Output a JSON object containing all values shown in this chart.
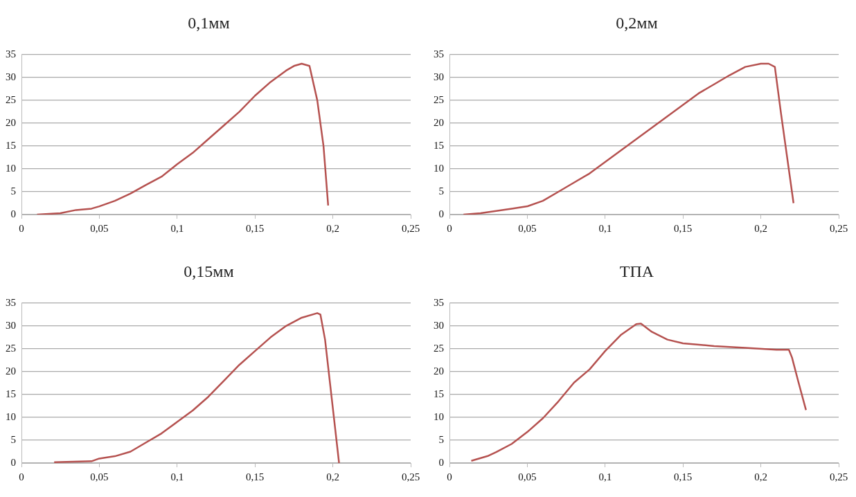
{
  "chart_data": [
    {
      "type": "line",
      "title": "0,1мм",
      "color": "#b5514f",
      "marker": "none",
      "grid": "y",
      "legend": false,
      "xlim": [
        0,
        0.25
      ],
      "xticks": [
        {
          "value": 0,
          "label": "0"
        },
        {
          "value": 0.05,
          "label": "0,05"
        },
        {
          "value": 0.1,
          "label": "0,1"
        },
        {
          "value": 0.15,
          "label": "0,15"
        },
        {
          "value": 0.2,
          "label": "0,2"
        },
        {
          "value": 0.25,
          "label": "0,25"
        }
      ],
      "ylim": [
        0,
        35
      ],
      "yticks": [
        0,
        5,
        10,
        15,
        20,
        25,
        30,
        35
      ],
      "x": [
        0.01,
        0.025,
        0.035,
        0.045,
        0.05,
        0.06,
        0.07,
        0.08,
        0.09,
        0.1,
        0.11,
        0.12,
        0.13,
        0.14,
        0.15,
        0.16,
        0.17,
        0.175,
        0.18,
        0.185,
        0.19,
        0.194,
        0.197
      ],
      "values": [
        0,
        0.3,
        1,
        1.3,
        1.8,
        3,
        4.6,
        6.5,
        8.3,
        11,
        13.5,
        16.5,
        19.5,
        22.5,
        26,
        29,
        31.5,
        32.5,
        33,
        32.5,
        25,
        15,
        2
      ]
    },
    {
      "type": "line",
      "title": "0,2мм",
      "color": "#b5514f",
      "marker": "none",
      "grid": "y",
      "legend": false,
      "xlim": [
        0,
        0.25
      ],
      "xticks": [
        {
          "value": 0,
          "label": "0"
        },
        {
          "value": 0.05,
          "label": "0,05"
        },
        {
          "value": 0.1,
          "label": "0,1"
        },
        {
          "value": 0.15,
          "label": "0,15"
        },
        {
          "value": 0.2,
          "label": "0,2"
        },
        {
          "value": 0.25,
          "label": "0,25"
        }
      ],
      "ylim": [
        0,
        35
      ],
      "yticks": [
        0,
        5,
        10,
        15,
        20,
        25,
        30,
        35
      ],
      "x": [
        0.009,
        0.02,
        0.03,
        0.04,
        0.05,
        0.06,
        0.07,
        0.08,
        0.09,
        0.1,
        0.11,
        0.12,
        0.13,
        0.14,
        0.15,
        0.16,
        0.17,
        0.18,
        0.19,
        0.2,
        0.205,
        0.209,
        0.213,
        0.221
      ],
      "values": [
        0,
        0.3,
        0.8,
        1.3,
        1.8,
        3,
        5,
        7,
        9,
        11.5,
        14,
        16.5,
        19,
        21.5,
        24,
        26.5,
        28.5,
        30.5,
        32.3,
        33,
        33,
        32.3,
        22,
        2.5
      ]
    },
    {
      "type": "line",
      "title": "0,15мм",
      "color": "#b5514f",
      "marker": "none",
      "grid": "y",
      "legend": false,
      "xlim": [
        0,
        0.25
      ],
      "xticks": [
        {
          "value": 0,
          "label": "0"
        },
        {
          "value": 0.05,
          "label": "0,05"
        },
        {
          "value": 0.1,
          "label": "0,1"
        },
        {
          "value": 0.15,
          "label": "0,15"
        },
        {
          "value": 0.2,
          "label": "0,2"
        },
        {
          "value": 0.25,
          "label": "0,25"
        }
      ],
      "ylim": [
        0,
        35
      ],
      "yticks": [
        0,
        5,
        10,
        15,
        20,
        25,
        30,
        35
      ],
      "x": [
        0.021,
        0.045,
        0.05,
        0.06,
        0.07,
        0.08,
        0.09,
        0.1,
        0.11,
        0.12,
        0.13,
        0.14,
        0.15,
        0.16,
        0.17,
        0.18,
        0.19,
        0.192,
        0.195,
        0.2,
        0.204
      ],
      "values": [
        0.2,
        0.4,
        1,
        1.5,
        2.5,
        4.5,
        6.5,
        9,
        11.5,
        14.5,
        18,
        21.5,
        24.5,
        27.5,
        30,
        31.8,
        32.8,
        32.5,
        27,
        12,
        0
      ]
    },
    {
      "type": "line",
      "title": "ТПА",
      "color": "#b5514f",
      "marker": "none",
      "grid": "y",
      "legend": false,
      "xlim": [
        0,
        0.25
      ],
      "xticks": [
        {
          "value": 0,
          "label": "0"
        },
        {
          "value": 0.05,
          "label": "0,05"
        },
        {
          "value": 0.1,
          "label": "0,1"
        },
        {
          "value": 0.15,
          "label": "0,15"
        },
        {
          "value": 0.2,
          "label": "0,2"
        },
        {
          "value": 0.25,
          "label": "0,25"
        }
      ],
      "ylim": [
        0,
        35
      ],
      "yticks": [
        0,
        5,
        10,
        15,
        20,
        25,
        30,
        35
      ],
      "x": [
        0.014,
        0.025,
        0.03,
        0.04,
        0.05,
        0.06,
        0.07,
        0.08,
        0.09,
        0.1,
        0.11,
        0.12,
        0.123,
        0.13,
        0.14,
        0.15,
        0.17,
        0.19,
        0.21,
        0.218,
        0.22,
        0.224,
        0.229
      ],
      "values": [
        0.5,
        1.6,
        2.4,
        4.2,
        6.8,
        9.8,
        13.5,
        17.6,
        20.5,
        24.5,
        28,
        30.4,
        30.5,
        28.7,
        27,
        26.2,
        25.6,
        25.2,
        24.8,
        24.8,
        23.1,
        17.9,
        11.6
      ]
    }
  ]
}
